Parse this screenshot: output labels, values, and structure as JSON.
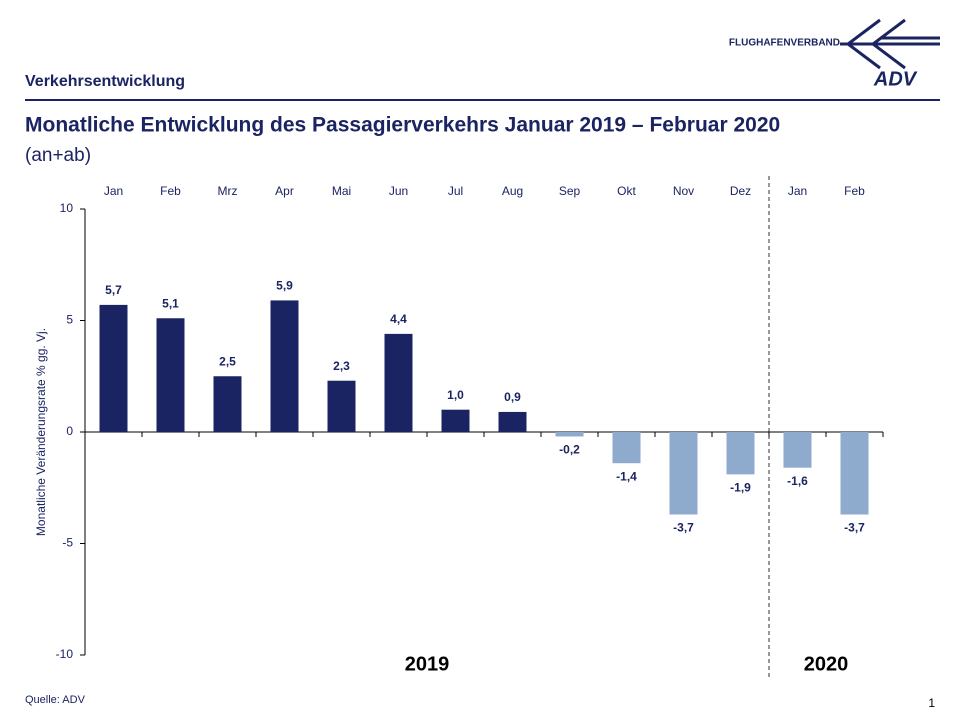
{
  "header": {
    "section": "Verkehrsentwicklung",
    "logo_text": "FLUGHAFENVERBAND",
    "logo_mark": "ADV"
  },
  "chart_data": {
    "type": "bar",
    "title": "Monatliche Entwicklung des Passagierverkehrs  Januar 2019 – Februar 2020",
    "subtitle": "(an+ab)",
    "y_label": "Monatliche Veränderungsrate % gg. Vj.",
    "categories": [
      "Jan",
      "Feb",
      "Mrz",
      "Apr",
      "Mai",
      "Jun",
      "Jul",
      "Aug",
      "Sep",
      "Okt",
      "Nov",
      "Dez",
      "Jan",
      "Feb"
    ],
    "values": [
      5.7,
      5.1,
      2.5,
      5.9,
      2.3,
      4.4,
      1.0,
      0.9,
      -0.2,
      -1.4,
      -3.7,
      -1.9,
      -1.6,
      -3.7
    ],
    "value_labels": [
      "5,7",
      "5,1",
      "2,5",
      "5,9",
      "2,3",
      "4,4",
      "1,0",
      "0,9",
      "-0,2",
      "-1,4",
      "-3,7",
      "-1,9",
      "-1,6",
      "-3,7"
    ],
    "positive_color": "#1b2462",
    "negative_color": "#8eaacd",
    "ylim": [
      -10,
      10
    ],
    "yticks": [
      -10,
      -5,
      0,
      5,
      10
    ],
    "year_labels": [
      "2019",
      "2020"
    ]
  },
  "footer": {
    "source": "Quelle: ADV",
    "page": "1"
  }
}
